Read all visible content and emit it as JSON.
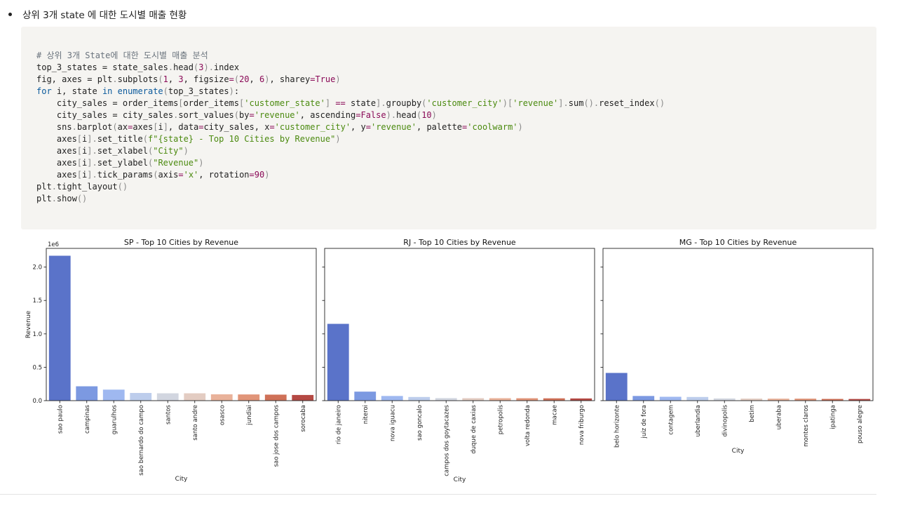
{
  "bullet": {
    "text": "상위 3개 state 에 대한 도시별 매출 현황"
  },
  "code": {
    "lines": [
      [
        [
          "comment",
          "# 상위 3개 State에 대한 도시별 매출 분석"
        ]
      ],
      [
        [
          "plain",
          "top_3_states = state_sales"
        ],
        [
          "punc",
          "."
        ],
        [
          "plain",
          "head"
        ],
        [
          "punc",
          "("
        ],
        [
          "num",
          "3"
        ],
        [
          "punc",
          ")"
        ],
        [
          "punc",
          "."
        ],
        [
          "plain",
          "index"
        ]
      ],
      [
        [
          "plain",
          "fig, axes = plt"
        ],
        [
          "punc",
          "."
        ],
        [
          "plain",
          "subplots"
        ],
        [
          "punc",
          "("
        ],
        [
          "num",
          "1"
        ],
        [
          "plain",
          ", "
        ],
        [
          "num",
          "3"
        ],
        [
          "plain",
          ", figsize"
        ],
        [
          "op",
          "="
        ],
        [
          "punc",
          "("
        ],
        [
          "num",
          "20"
        ],
        [
          "plain",
          ", "
        ],
        [
          "num",
          "6"
        ],
        [
          "punc",
          ")"
        ],
        [
          "plain",
          ", sharey"
        ],
        [
          "op",
          "="
        ],
        [
          "num",
          "True"
        ],
        [
          "punc",
          ")"
        ]
      ],
      [
        [
          "kw",
          "for"
        ],
        [
          "plain",
          " i, state "
        ],
        [
          "kw",
          "in"
        ],
        [
          "plain",
          " "
        ],
        [
          "kw",
          "enumerate"
        ],
        [
          "punc",
          "("
        ],
        [
          "plain",
          "top_3_states"
        ],
        [
          "punc",
          ")"
        ],
        [
          "plain",
          ":"
        ]
      ],
      [
        [
          "plain",
          "    city_sales = order_items"
        ],
        [
          "punc",
          "["
        ],
        [
          "plain",
          "order_items"
        ],
        [
          "punc",
          "["
        ],
        [
          "str",
          "'customer_state'"
        ],
        [
          "punc",
          "]"
        ],
        [
          "plain",
          " "
        ],
        [
          "op",
          "=="
        ],
        [
          "plain",
          " state"
        ],
        [
          "punc",
          "]"
        ],
        [
          "punc",
          "."
        ],
        [
          "plain",
          "groupby"
        ],
        [
          "punc",
          "("
        ],
        [
          "str",
          "'customer_city'"
        ],
        [
          "punc",
          ")"
        ],
        [
          "punc",
          "["
        ],
        [
          "str",
          "'revenue'"
        ],
        [
          "punc",
          "]"
        ],
        [
          "punc",
          "."
        ],
        [
          "plain",
          "sum"
        ],
        [
          "punc",
          "()"
        ],
        [
          "punc",
          "."
        ],
        [
          "plain",
          "reset_index"
        ],
        [
          "punc",
          "()"
        ]
      ],
      [
        [
          "plain",
          "    city_sales = city_sales"
        ],
        [
          "punc",
          "."
        ],
        [
          "plain",
          "sort_values"
        ],
        [
          "punc",
          "("
        ],
        [
          "plain",
          "by"
        ],
        [
          "op",
          "="
        ],
        [
          "str",
          "'revenue'"
        ],
        [
          "plain",
          ", ascending"
        ],
        [
          "op",
          "="
        ],
        [
          "num",
          "False"
        ],
        [
          "punc",
          ")"
        ],
        [
          "punc",
          "."
        ],
        [
          "plain",
          "head"
        ],
        [
          "punc",
          "("
        ],
        [
          "num",
          "10"
        ],
        [
          "punc",
          ")"
        ]
      ],
      [
        [
          "plain",
          "    sns"
        ],
        [
          "punc",
          "."
        ],
        [
          "plain",
          "barplot"
        ],
        [
          "punc",
          "("
        ],
        [
          "plain",
          "ax"
        ],
        [
          "op",
          "="
        ],
        [
          "plain",
          "axes"
        ],
        [
          "punc",
          "["
        ],
        [
          "plain",
          "i"
        ],
        [
          "punc",
          "]"
        ],
        [
          "plain",
          ", data"
        ],
        [
          "op",
          "="
        ],
        [
          "plain",
          "city_sales, x"
        ],
        [
          "op",
          "="
        ],
        [
          "str",
          "'customer_city'"
        ],
        [
          "plain",
          ", y"
        ],
        [
          "op",
          "="
        ],
        [
          "str",
          "'revenue'"
        ],
        [
          "plain",
          ", palette"
        ],
        [
          "op",
          "="
        ],
        [
          "str",
          "'coolwarm'"
        ],
        [
          "punc",
          ")"
        ]
      ],
      [
        [
          "plain",
          "    axes"
        ],
        [
          "punc",
          "["
        ],
        [
          "plain",
          "i"
        ],
        [
          "punc",
          "]"
        ],
        [
          "punc",
          "."
        ],
        [
          "plain",
          "set_title"
        ],
        [
          "punc",
          "("
        ],
        [
          "str",
          "f\"{state} - Top 10 Cities by Revenue\""
        ],
        [
          "punc",
          ")"
        ]
      ],
      [
        [
          "plain",
          "    axes"
        ],
        [
          "punc",
          "["
        ],
        [
          "plain",
          "i"
        ],
        [
          "punc",
          "]"
        ],
        [
          "punc",
          "."
        ],
        [
          "plain",
          "set_xlabel"
        ],
        [
          "punc",
          "("
        ],
        [
          "str",
          "\"City\""
        ],
        [
          "punc",
          ")"
        ]
      ],
      [
        [
          "plain",
          "    axes"
        ],
        [
          "punc",
          "["
        ],
        [
          "plain",
          "i"
        ],
        [
          "punc",
          "]"
        ],
        [
          "punc",
          "."
        ],
        [
          "plain",
          "set_ylabel"
        ],
        [
          "punc",
          "("
        ],
        [
          "str",
          "\"Revenue\""
        ],
        [
          "punc",
          ")"
        ]
      ],
      [
        [
          "plain",
          "    axes"
        ],
        [
          "punc",
          "["
        ],
        [
          "plain",
          "i"
        ],
        [
          "punc",
          "]"
        ],
        [
          "punc",
          "."
        ],
        [
          "plain",
          "tick_params"
        ],
        [
          "punc",
          "("
        ],
        [
          "plain",
          "axis"
        ],
        [
          "op",
          "="
        ],
        [
          "str",
          "'x'"
        ],
        [
          "plain",
          ", rotation"
        ],
        [
          "op",
          "="
        ],
        [
          "num",
          "90"
        ],
        [
          "punc",
          ")"
        ]
      ],
      [
        [
          "plain",
          "plt"
        ],
        [
          "punc",
          "."
        ],
        [
          "plain",
          "tight_layout"
        ],
        [
          "punc",
          "()"
        ]
      ],
      [
        [
          "plain",
          "plt"
        ],
        [
          "punc",
          "."
        ],
        [
          "plain",
          "show"
        ],
        [
          "punc",
          "()"
        ]
      ]
    ]
  },
  "colors": {
    "coolwarm": [
      "#5a73c9",
      "#7c99e1",
      "#9fb8f0",
      "#bdcdec",
      "#d2d6e0",
      "#e3ccc2",
      "#e9b29a",
      "#e19579",
      "#cf7158",
      "#b54944"
    ],
    "code_bg": "#f5f4f1"
  },
  "chart_data": [
    {
      "type": "bar",
      "title": "SP - Top 10 Cities by Revenue",
      "xlabel": "City",
      "ylabel": "Revenue",
      "offset_label": "1e6",
      "ylim": [
        0,
        2.28
      ],
      "yticks": [
        0.0,
        0.5,
        1.0,
        1.5,
        2.0
      ],
      "ytick_labels": [
        "0.0",
        "0.5",
        "1.0",
        "1.5",
        "2.0"
      ],
      "categories": [
        "sao paulo",
        "campinas",
        "guarulhos",
        "sao bernardo do campo",
        "santos",
        "santo andre",
        "osasco",
        "jundiai",
        "sao jose dos campos",
        "sorocaba"
      ],
      "values": [
        2.17,
        0.215,
        0.165,
        0.115,
        0.11,
        0.11,
        0.095,
        0.093,
        0.09,
        0.085
      ]
    },
    {
      "type": "bar",
      "title": "RJ - Top 10 Cities by Revenue",
      "xlabel": "City",
      "ylabel": "",
      "ylim": [
        0,
        2.28
      ],
      "yticks": [
        0.0,
        0.5,
        1.0,
        1.5,
        2.0
      ],
      "categories": [
        "rio de janeiro",
        "niteroi",
        "nova iguacu",
        "sao goncalo",
        "campos dos goytacazes",
        "duque de caxias",
        "petropolis",
        "volta redonda",
        "macae",
        "nova friburgo"
      ],
      "values": [
        1.15,
        0.135,
        0.07,
        0.055,
        0.038,
        0.037,
        0.037,
        0.036,
        0.035,
        0.033
      ]
    },
    {
      "type": "bar",
      "title": "MG - Top 10 Cities by Revenue",
      "xlabel": "City",
      "ylabel": "",
      "ylim": [
        0,
        2.28
      ],
      "yticks": [
        0.0,
        0.5,
        1.0,
        1.5,
        2.0
      ],
      "categories": [
        "belo horizonte",
        "juiz de fora",
        "contagem",
        "uberlandia",
        "divinopolis",
        "betim",
        "uberaba",
        "montes claros",
        "ipatinga",
        "pouso alegre"
      ],
      "values": [
        0.415,
        0.07,
        0.058,
        0.055,
        0.033,
        0.031,
        0.03,
        0.03,
        0.026,
        0.025
      ]
    }
  ]
}
